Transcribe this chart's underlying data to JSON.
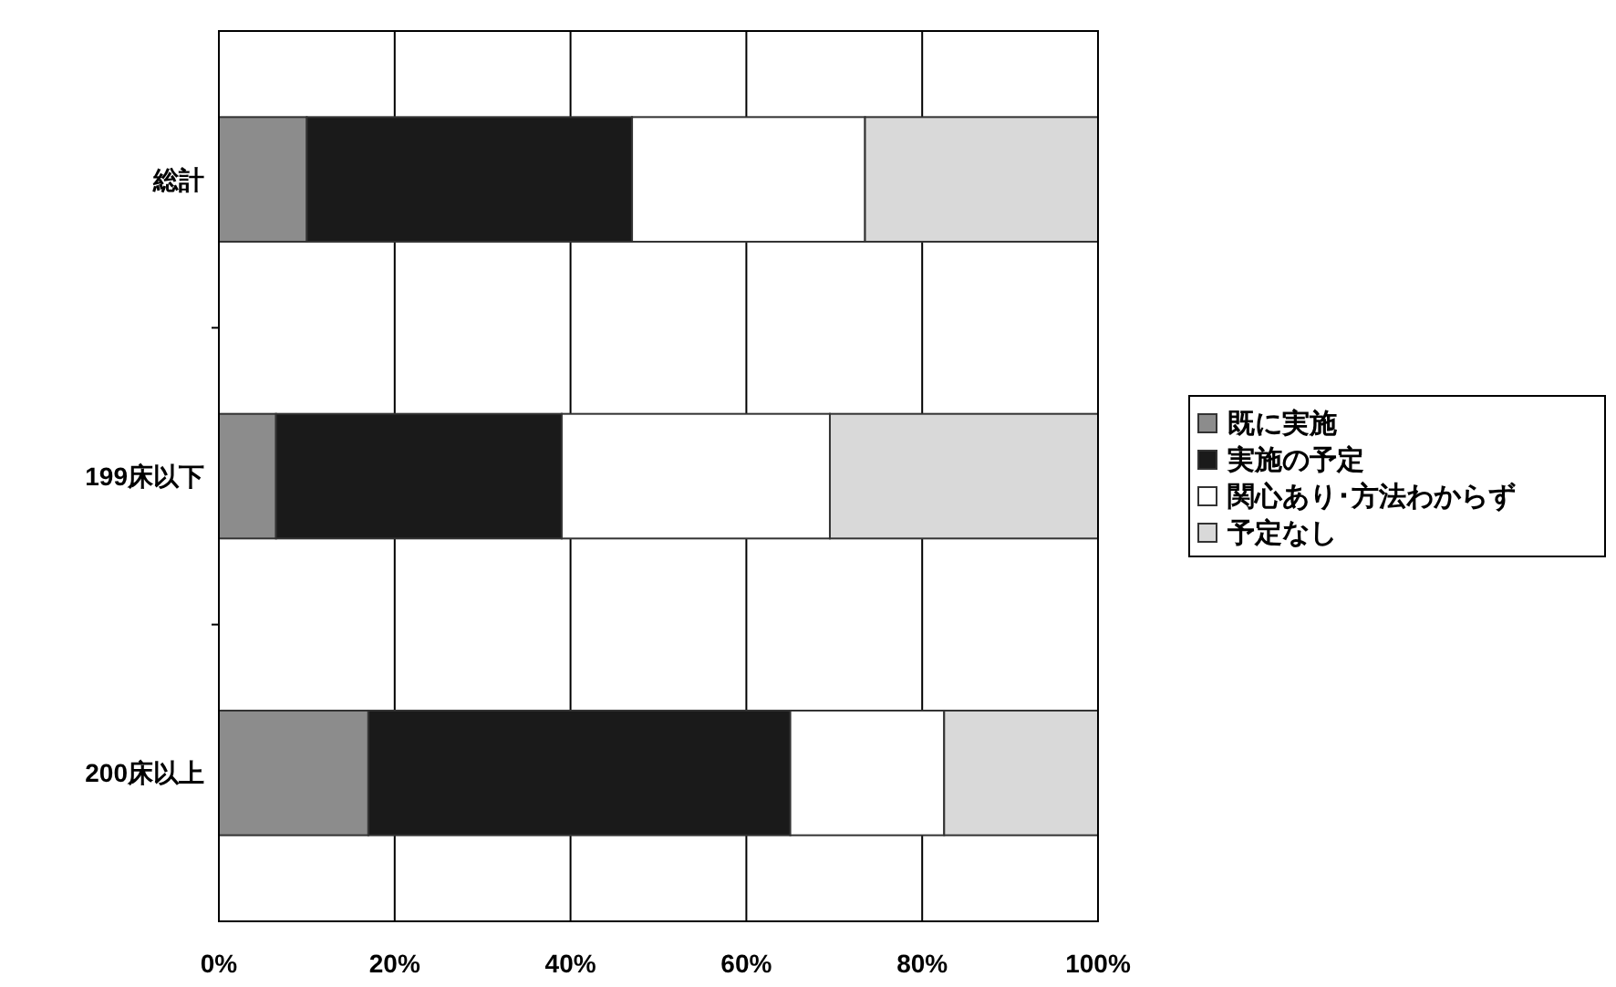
{
  "chart_data": {
    "type": "bar",
    "orientation": "horizontal",
    "stacked": true,
    "categories": [
      "総計",
      "199床以下",
      "200床以上"
    ],
    "series": [
      {
        "name": "既に実施",
        "color": "#8c8c8c",
        "values": [
          10,
          6.5,
          17
        ]
      },
      {
        "name": "実施の予定",
        "color": "#1a1a1a",
        "values": [
          37,
          32.5,
          48
        ]
      },
      {
        "name": "関心あり･方法わからず",
        "color": "#ffffff",
        "values": [
          26.5,
          30.5,
          17.5
        ]
      },
      {
        "name": "予定なし",
        "color": "#d9d9d9",
        "values": [
          26.5,
          30.5,
          17.5
        ]
      }
    ],
    "xlim": [
      0,
      100
    ],
    "xticks": [
      {
        "value": 0,
        "label": "0%"
      },
      {
        "value": 20,
        "label": "20%"
      },
      {
        "value": 40,
        "label": "40%"
      },
      {
        "value": 60,
        "label": "60%"
      },
      {
        "value": 80,
        "label": "80%"
      },
      {
        "value": 100,
        "label": "100%"
      }
    ],
    "grid": "x",
    "legend": "right"
  }
}
